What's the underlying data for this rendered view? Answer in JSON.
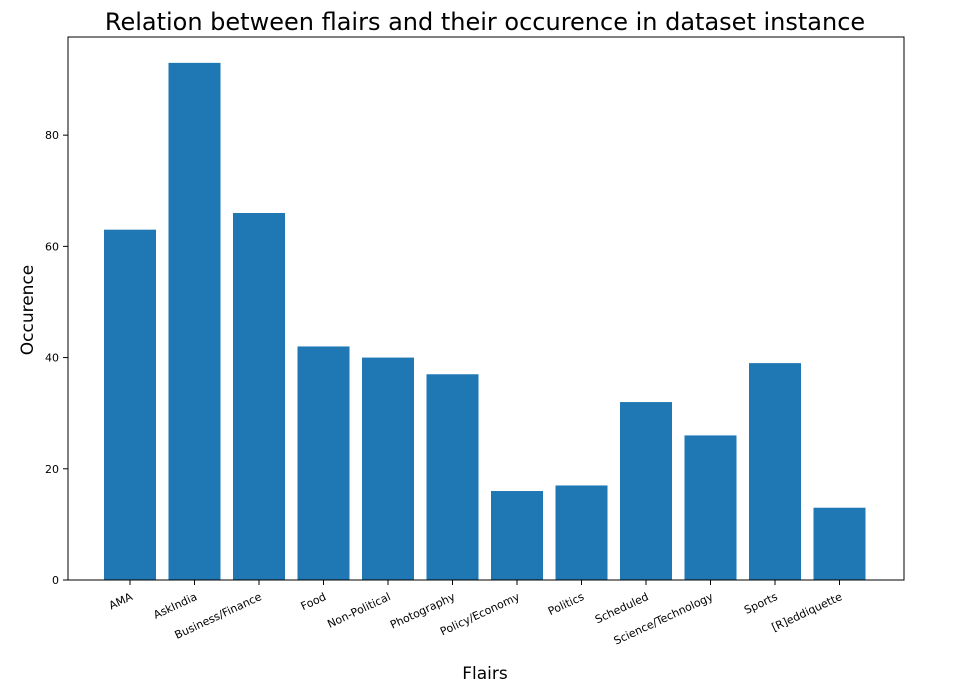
{
  "chart_data": {
    "type": "bar",
    "title": "Relation between flairs and their occurence in dataset instance",
    "xlabel": "Flairs",
    "ylabel": "Occurence",
    "categories": [
      "AMA",
      "AskIndia",
      "Business/Finance",
      "Food",
      "Non-Political",
      "Photography",
      "Policy/Economy",
      "Politics",
      "Scheduled",
      "Science/Technology",
      "Sports",
      "[R]eddiquette"
    ],
    "values": [
      63,
      93,
      66,
      42,
      40,
      37,
      16,
      17,
      32,
      26,
      39,
      13
    ],
    "ylim": [
      0,
      97.65
    ],
    "yticks": [
      0,
      20,
      40,
      60,
      80
    ],
    "grid": false,
    "bar_color": "#1f77b4"
  }
}
